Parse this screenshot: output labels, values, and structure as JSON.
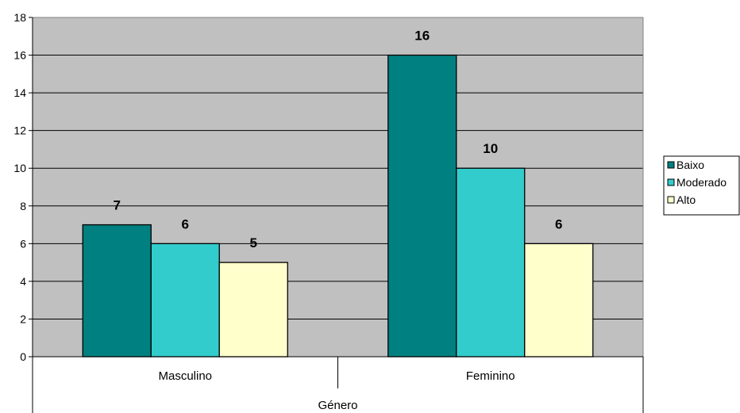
{
  "chart_data": {
    "type": "bar",
    "categories": [
      "Masculino",
      "Feminino"
    ],
    "series": [
      {
        "name": "Baixo",
        "values": [
          7,
          16
        ],
        "color": "#008080"
      },
      {
        "name": "Moderado",
        "values": [
          6,
          10
        ],
        "color": "#33CCCC"
      },
      {
        "name": "Alto",
        "values": [
          5,
          6
        ],
        "color": "#FFFFCC"
      }
    ],
    "title": "",
    "xlabel": "Género",
    "ylabel": "",
    "ylim": [
      0,
      18
    ],
    "yticks": [
      0,
      2,
      4,
      6,
      8,
      10,
      12,
      14,
      16,
      18
    ],
    "grid": true,
    "plot_background": "#C0C0C0",
    "legend_position": "right",
    "data_labels": true
  }
}
